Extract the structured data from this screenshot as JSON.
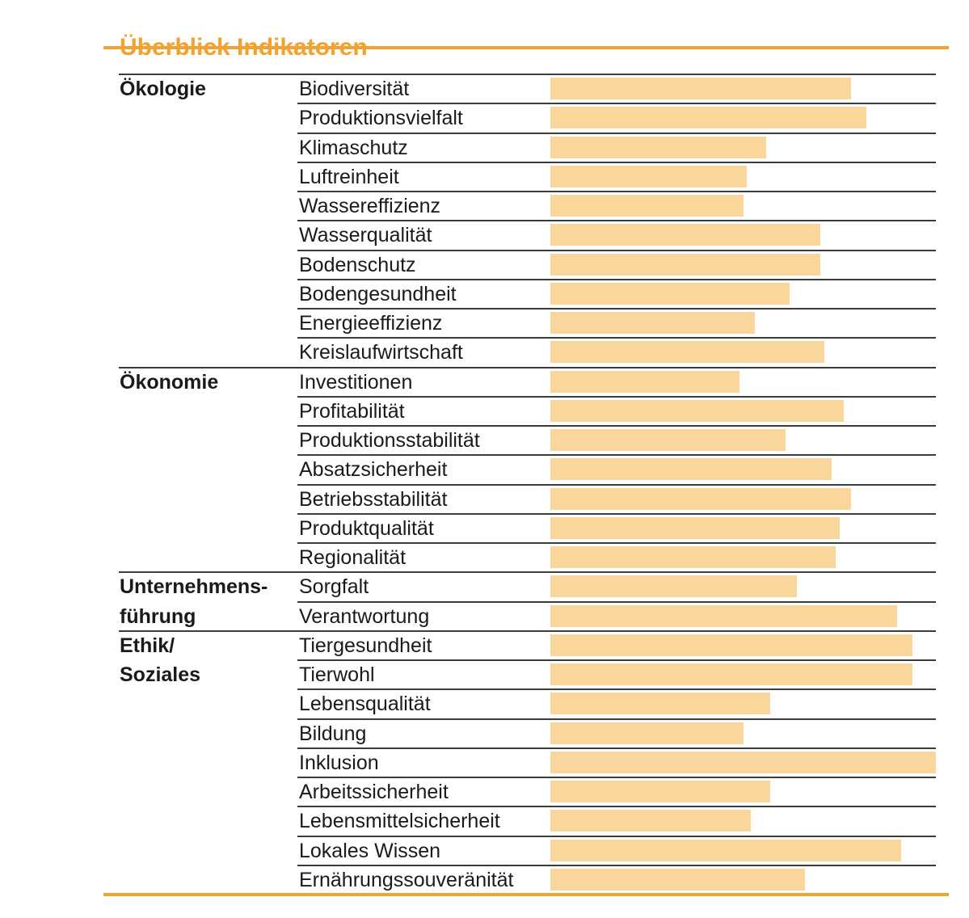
{
  "page": {
    "title": "Überblick Indikatoren"
  },
  "colors": {
    "accent_orange": "#F0A232",
    "bar_fill": "#F9D69B",
    "separator_dark": "#3B3B3B",
    "text": "#1A1A1A",
    "background": "#FFFFFF"
  },
  "chart_data": {
    "type": "bar",
    "orientation": "horizontal",
    "title": "Überblick Indikatoren",
    "value_axis": {
      "min": 0,
      "max": 100,
      "ticks_visible": false
    },
    "legend": "none",
    "grid": "horizontal row separators only",
    "layout_hint": "grouped rows; full-width separator at each category start; bars unlabeled, value 100 = full bar track width",
    "groups": [
      {
        "category": "Ökologie",
        "indicators": [
          {
            "label": "Biodiversität",
            "value": 78
          },
          {
            "label": "Produktionsvielfalt",
            "value": 82
          },
          {
            "label": "Klimaschutz",
            "value": 56
          },
          {
            "label": "Luftreinheit",
            "value": 51
          },
          {
            "label": "Wassereffizienz",
            "value": 50
          },
          {
            "label": "Wasserqualität",
            "value": 70
          },
          {
            "label": "Bodenschutz",
            "value": 70
          },
          {
            "label": "Bodengesundheit",
            "value": 62
          },
          {
            "label": "Energieeffizienz",
            "value": 53
          },
          {
            "label": "Kreislaufwirtschaft",
            "value": 71
          }
        ]
      },
      {
        "category": "Ökonomie",
        "indicators": [
          {
            "label": "Investitionen",
            "value": 49
          },
          {
            "label": "Profitabilität",
            "value": 76
          },
          {
            "label": "Produktionsstabilität",
            "value": 61
          },
          {
            "label": "Absatzsicherheit",
            "value": 73
          },
          {
            "label": "Betriebsstabilität",
            "value": 78
          },
          {
            "label": "Produktqualität",
            "value": 75
          },
          {
            "label": "Regionalität",
            "value": 74
          }
        ]
      },
      {
        "category": "Unternehmens-\nführung",
        "indicators": [
          {
            "label": "Sorgfalt",
            "value": 64
          },
          {
            "label": "Verantwortung",
            "value": 90
          }
        ]
      },
      {
        "category": "Ethik/\nSoziales",
        "indicators": [
          {
            "label": "Tiergesundheit",
            "value": 94
          },
          {
            "label": "Tierwohl",
            "value": 94
          },
          {
            "label": "Lebensqualität",
            "value": 57
          },
          {
            "label": "Bildung",
            "value": 50
          },
          {
            "label": "Inklusion",
            "value": 100
          },
          {
            "label": "Arbeitssicherheit",
            "value": 57
          },
          {
            "label": "Lebensmittelsicherheit",
            "value": 52
          },
          {
            "label": "Lokales Wissen",
            "value": 91
          },
          {
            "label": "Ernährungssouveränität",
            "value": 66
          }
        ]
      }
    ]
  }
}
